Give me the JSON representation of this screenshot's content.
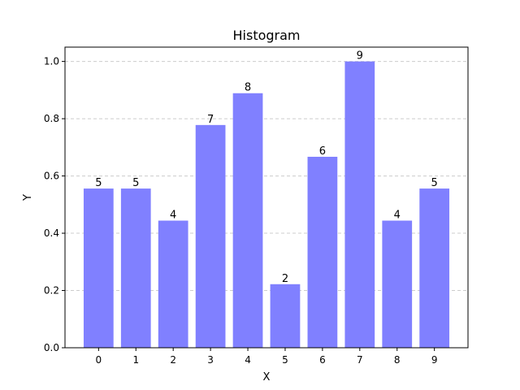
{
  "chart_data": {
    "type": "bar",
    "title": "Histogram",
    "xlabel": "X",
    "ylabel": "Y",
    "categories": [
      "0",
      "1",
      "2",
      "3",
      "4",
      "5",
      "6",
      "7",
      "8",
      "9"
    ],
    "values": [
      0.556,
      0.556,
      0.444,
      0.778,
      0.889,
      0.222,
      0.667,
      1.0,
      0.444,
      0.556
    ],
    "data_labels": [
      "5",
      "5",
      "4",
      "7",
      "8",
      "2",
      "6",
      "9",
      "4",
      "5"
    ],
    "ylim": [
      0,
      1.05
    ],
    "yticks": [
      "0.0",
      "0.2",
      "0.4",
      "0.6",
      "0.8",
      "1.0"
    ],
    "grid": "y-dashed",
    "bar_color": "#8080ff",
    "grid_color": "#cccccc"
  }
}
